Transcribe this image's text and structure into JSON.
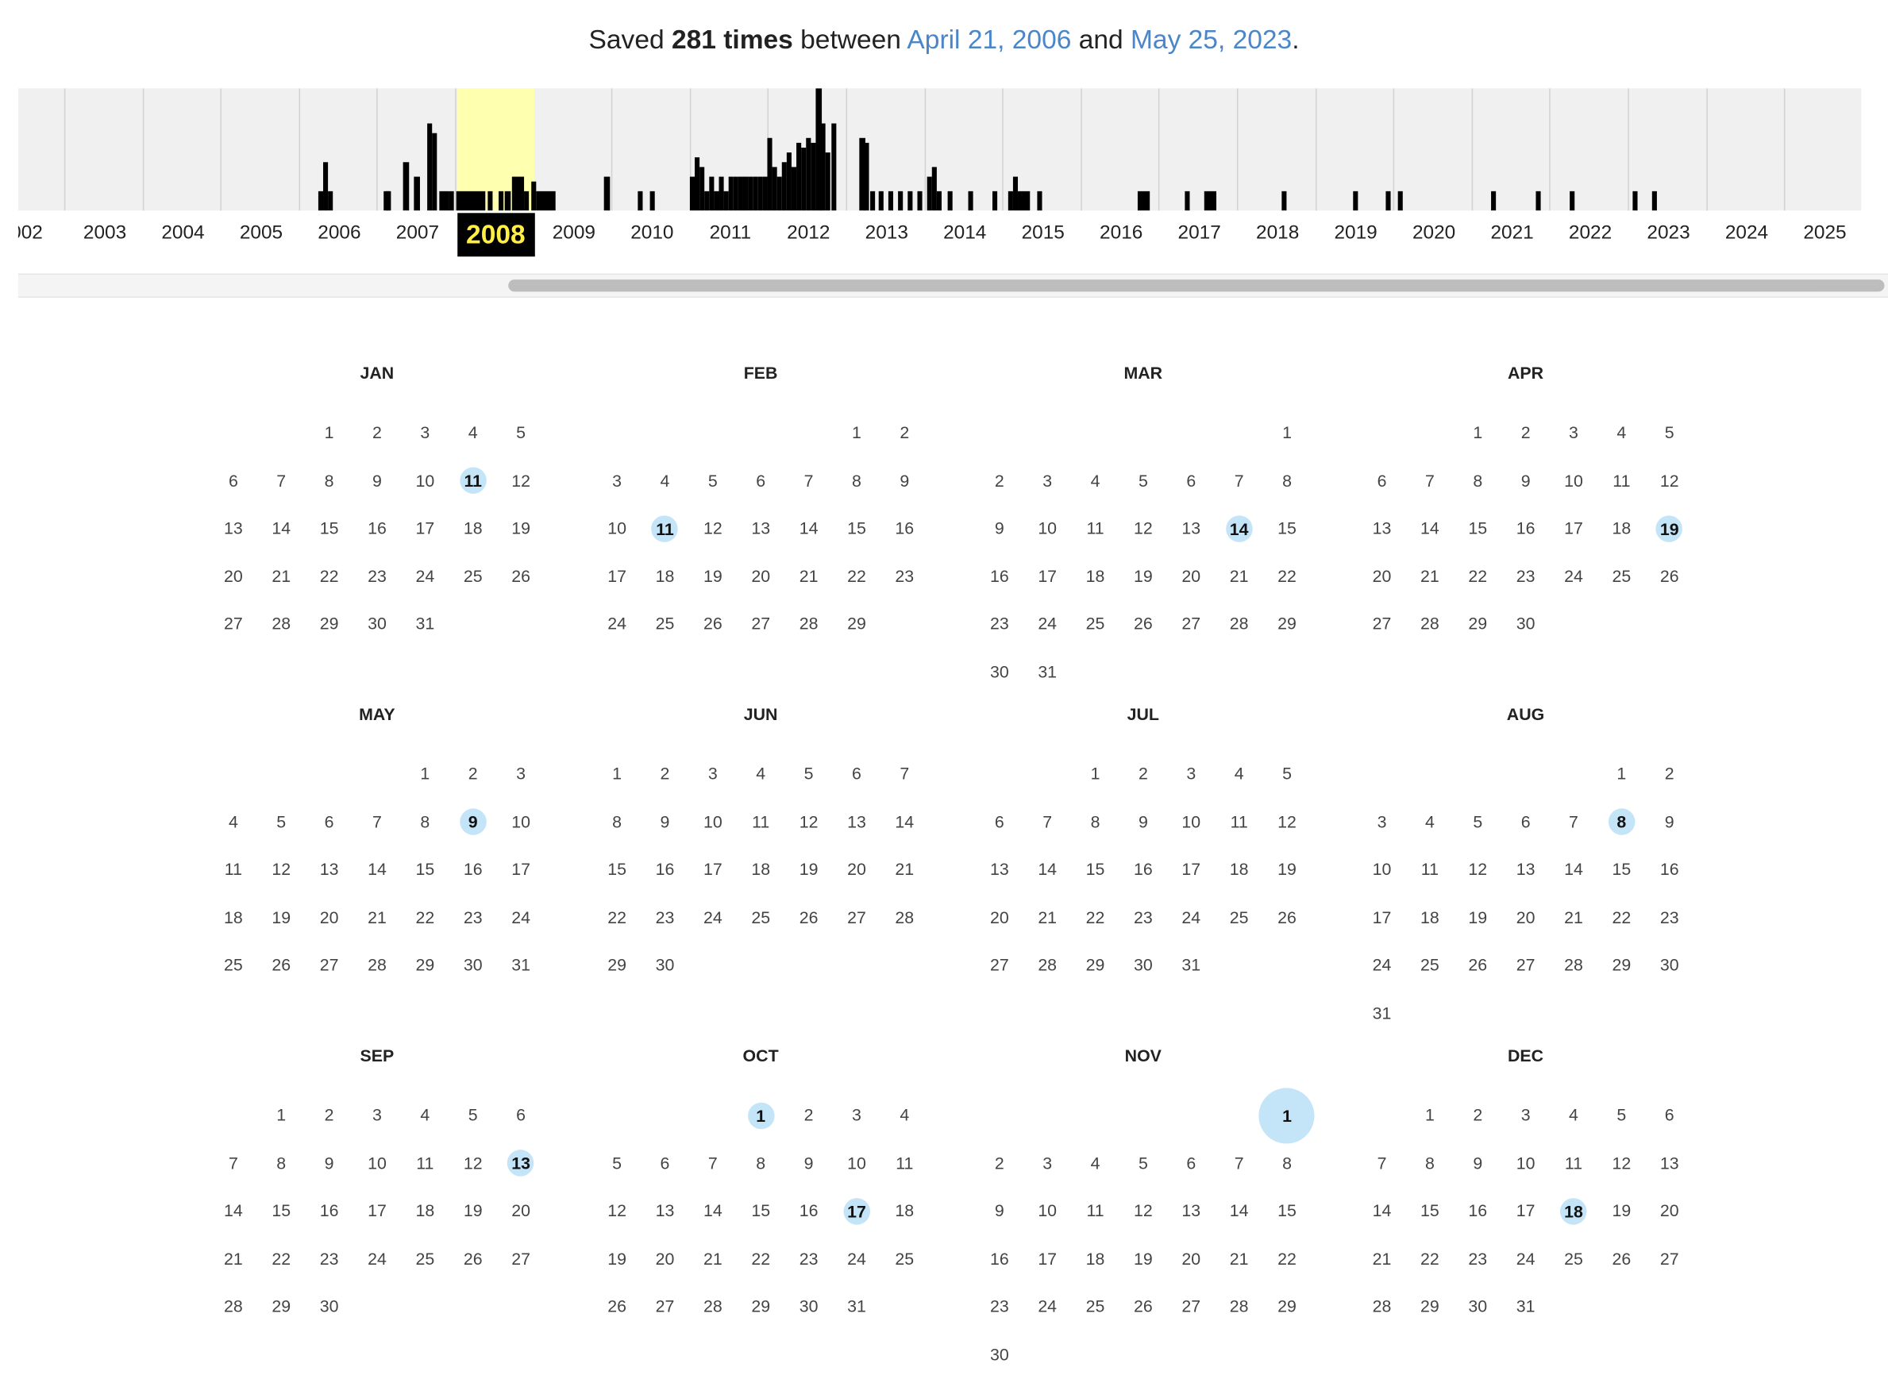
{
  "summary": {
    "prefix": "Saved ",
    "count": "281 times",
    "mid": " between ",
    "first_date": "April 21, 2006",
    "and": " and ",
    "last_date": "May 25, 2023",
    "suffix": "."
  },
  "timeline": {
    "years": [
      {
        "label": "002"
      },
      {
        "label": "2003"
      },
      {
        "label": "2004"
      },
      {
        "label": "2005"
      },
      {
        "label": "2006"
      },
      {
        "label": "2007"
      },
      {
        "label": "2008",
        "selected": true
      },
      {
        "label": "2009"
      },
      {
        "label": "2010"
      },
      {
        "label": "2011"
      },
      {
        "label": "2012"
      },
      {
        "label": "2013"
      },
      {
        "label": "2014"
      },
      {
        "label": "2015"
      },
      {
        "label": "2016"
      },
      {
        "label": "2017"
      },
      {
        "label": "2018"
      },
      {
        "label": "2019"
      },
      {
        "label": "2020"
      },
      {
        "label": "2021"
      },
      {
        "label": "2022"
      },
      {
        "label": "2023"
      },
      {
        "label": "2024"
      },
      {
        "label": "2025"
      }
    ],
    "selected_year": "2008",
    "highlight_color": "#ffffb0"
  },
  "calendar": {
    "year": 2008,
    "months": [
      {
        "name": "JAN",
        "captured": [
          11
        ]
      },
      {
        "name": "FEB",
        "captured": [
          11
        ]
      },
      {
        "name": "MAR",
        "captured": [
          14
        ]
      },
      {
        "name": "APR",
        "captured": [
          19
        ]
      },
      {
        "name": "MAY",
        "captured": [
          9
        ]
      },
      {
        "name": "JUN",
        "captured": []
      },
      {
        "name": "JUL",
        "captured": []
      },
      {
        "name": "AUG",
        "captured": [
          8
        ]
      },
      {
        "name": "SEP",
        "captured": [
          13
        ]
      },
      {
        "name": "OCT",
        "captured": [
          1,
          17
        ]
      },
      {
        "name": "NOV",
        "captured": [
          1
        ],
        "large": [
          1
        ]
      },
      {
        "name": "DEC",
        "captured": [
          18
        ]
      }
    ],
    "capture_color": "#c4e4f8"
  }
}
